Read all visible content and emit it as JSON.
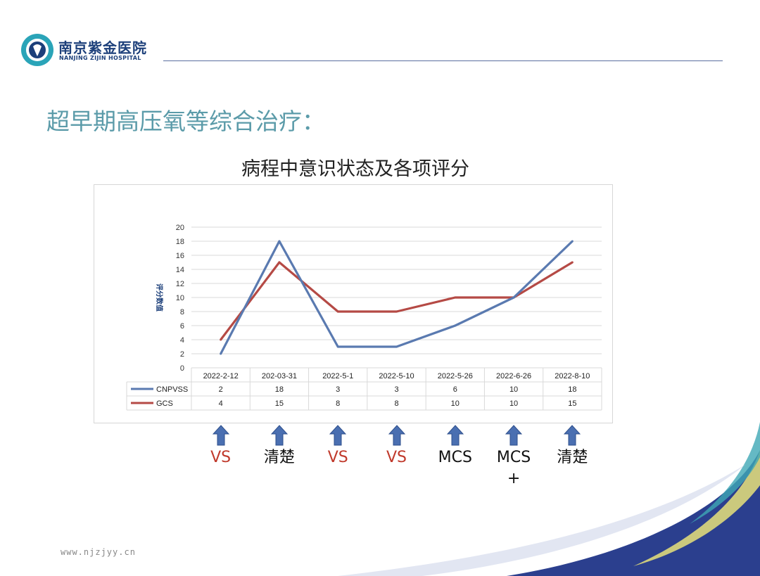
{
  "brand": {
    "name_cn": "南京紫金医院",
    "name_en": "NANJING ZIJIN HOSPITAL",
    "primary_color": "#1c3f7a",
    "accent_color": "#2aa4b8"
  },
  "slide": {
    "title": "超早期高压氧等综合治疗：",
    "footer_url": "www.njzjyy.cn"
  },
  "chart_data": {
    "type": "line",
    "title": "病程中意识状态及各项评分",
    "ylabel": "评分数值",
    "xlabel": "",
    "ylim": [
      0,
      20
    ],
    "yticks": [
      0,
      2,
      4,
      6,
      8,
      10,
      12,
      14,
      16,
      18,
      20
    ],
    "categories": [
      "2022-2-12",
      "202-03-31",
      "2022-5-1",
      "2022-5-10",
      "2022-5-26",
      "2022-6-26",
      "2022-8-10"
    ],
    "series": [
      {
        "name": "CNPVSS",
        "color": "#5a7ab0",
        "values": [
          2,
          18,
          3,
          3,
          6,
          10,
          18
        ]
      },
      {
        "name": "GCS",
        "color": "#b54a45",
        "values": [
          4,
          15,
          8,
          8,
          10,
          10,
          15
        ]
      }
    ],
    "grid": true,
    "data_table": true
  },
  "status_labels": [
    {
      "text": "VS",
      "color": "#c0392b"
    },
    {
      "text": "清楚",
      "color": "#111111"
    },
    {
      "text": "VS",
      "color": "#c0392b"
    },
    {
      "text": "VS",
      "color": "#c0392b"
    },
    {
      "text": "MCS",
      "color": "#111111"
    },
    {
      "text": "MCS\n+",
      "color": "#111111"
    },
    {
      "text": "清楚",
      "color": "#111111"
    }
  ]
}
